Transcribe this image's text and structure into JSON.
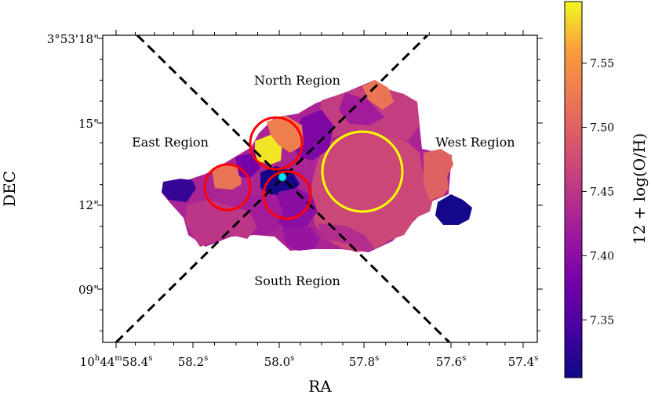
{
  "chart_data": {
    "type": "heatmap",
    "xlabel": "RA",
    "ylabel": "DEC",
    "colorbar": {
      "label": "12 + log(O/H)",
      "range": [
        7.305,
        7.598
      ],
      "ticks": [
        "7.35",
        "7.40",
        "7.45",
        "7.50",
        "7.55"
      ],
      "tick_values": [
        7.35,
        7.4,
        7.45,
        7.5,
        7.55
      ]
    },
    "x_ticks": [
      {
        "main": "10",
        "s1": "h",
        "mid": "44",
        "s2": "m",
        "tail": "58.4",
        "s3": "s"
      },
      {
        "main": "58.2",
        "s1": "s"
      },
      {
        "main": "58.0",
        "s1": "s"
      },
      {
        "main": "57.8",
        "s1": "s"
      },
      {
        "main": "57.6",
        "s1": "s"
      },
      {
        "main": "57.4",
        "s1": "s"
      }
    ],
    "y_ticks": [
      "3°53'18\"",
      "15\"",
      "12\"",
      "09\""
    ],
    "regions": {
      "north": "North Region",
      "south": "South Region",
      "east": "East Region",
      "west": "West Region"
    },
    "colors": {
      "red_circle": "#ff0000",
      "yellow_circle": "#ffff00",
      "center_point": "#00e5ee",
      "dashed_lines": "#000000"
    },
    "metallicity_patches": [
      {
        "id": "west-big",
        "oh": 7.47
      },
      {
        "id": "west-upper",
        "oh": 7.46
      },
      {
        "id": "ne-tip",
        "oh": 7.52
      },
      {
        "id": "north-mid",
        "oh": 7.42
      },
      {
        "id": "north-left",
        "oh": 7.39
      },
      {
        "id": "north-yellow",
        "oh": 7.59
      },
      {
        "id": "north-orange",
        "oh": 7.53
      },
      {
        "id": "west-edge",
        "oh": 7.5
      },
      {
        "id": "far-west",
        "oh": 7.31
      },
      {
        "id": "east-orange",
        "oh": 7.52
      },
      {
        "id": "east-purple",
        "oh": 7.38
      },
      {
        "id": "east-dark",
        "oh": 7.33
      },
      {
        "id": "center-dark",
        "oh": 7.31
      },
      {
        "id": "center-purple",
        "oh": 7.4
      },
      {
        "id": "south-mid",
        "oh": 7.42
      },
      {
        "id": "south-left",
        "oh": 7.45
      },
      {
        "id": "south-lobe",
        "oh": 7.41
      },
      {
        "id": "south-east",
        "oh": 7.44
      }
    ]
  }
}
